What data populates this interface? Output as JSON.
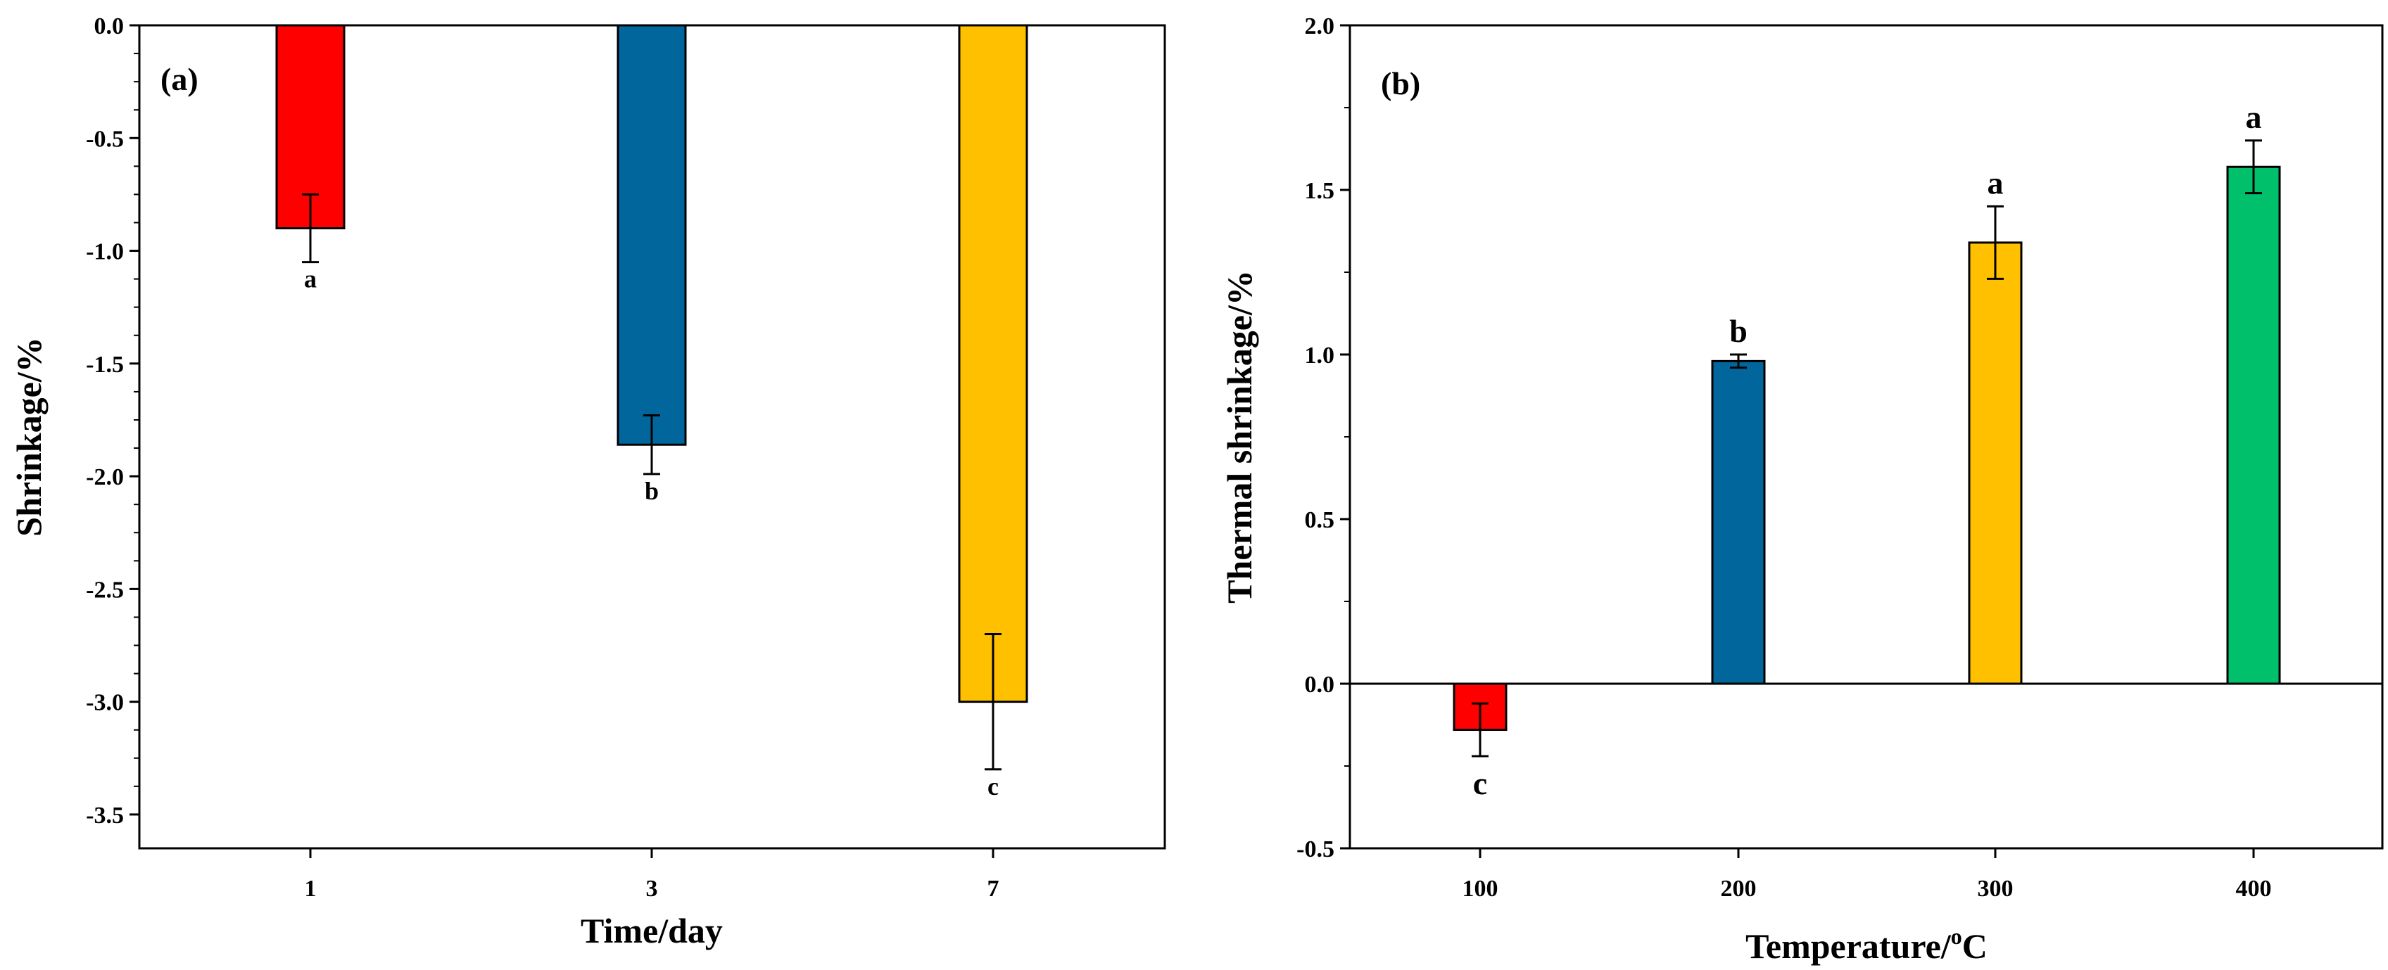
{
  "chart_data": [
    {
      "type": "bar",
      "panel_label": "(a)",
      "categories": [
        "1",
        "3",
        "7"
      ],
      "values": [
        -0.9,
        -1.86,
        -3.0
      ],
      "errors": [
        0.15,
        0.13,
        0.3
      ],
      "significance": [
        "a",
        "b",
        "c"
      ],
      "colors": [
        "#ff0000",
        "#00669b",
        "#ffc000"
      ],
      "xlabel": "Time/day",
      "ylabel": "Shrinkage/%",
      "ylim": [
        -3.65,
        0.0
      ],
      "yticks": [
        0.0,
        -0.5,
        -1.0,
        -1.5,
        -2.0,
        -2.5,
        -3.0,
        -3.5
      ],
      "ytick_labels": [
        "0.0",
        "-0.5",
        "-1.0",
        "-1.5",
        "-2.0",
        "-2.5",
        "-3.0",
        "-3.5"
      ],
      "grid": false
    },
    {
      "type": "bar",
      "panel_label": "(b)",
      "categories": [
        "100",
        "200",
        "300",
        "400"
      ],
      "values": [
        -0.14,
        0.98,
        1.34,
        1.57
      ],
      "errors": [
        0.08,
        0.02,
        0.11,
        0.08
      ],
      "significance": [
        "c",
        "b",
        "a",
        "a"
      ],
      "colors": [
        "#ff0000",
        "#00669b",
        "#ffc000",
        "#00c06b"
      ],
      "xlabel": "Temperature/",
      "xlabel_superscript": "o",
      "xlabel_unit": "C",
      "ylabel": "Thermal shrinkage/%",
      "ylim": [
        -0.5,
        2.0
      ],
      "yticks": [
        -0.5,
        0.0,
        0.5,
        1.0,
        1.5,
        2.0
      ],
      "ytick_labels": [
        "-0.5",
        "0.0",
        "0.5",
        "1.0",
        "1.5",
        "2.0"
      ],
      "zero_line": true,
      "grid": false
    }
  ]
}
